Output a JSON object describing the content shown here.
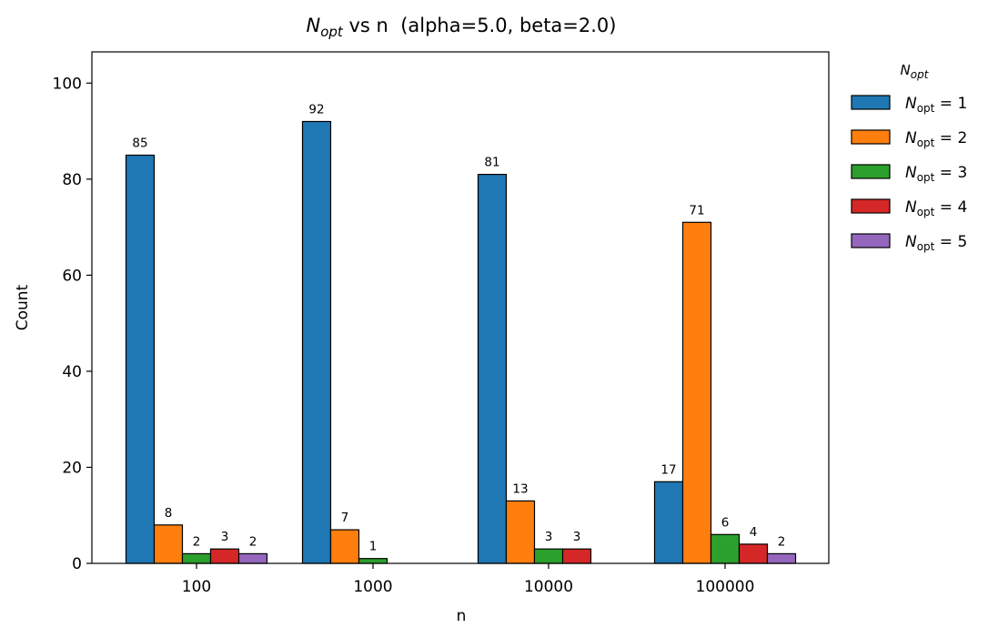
{
  "chart_data": {
    "type": "bar",
    "title": {
      "main": "N",
      "sub": "opt",
      "rest": " vs n  (alpha=5.0, beta=2.0)"
    },
    "xlabel": "n",
    "ylabel": "Count",
    "categories": [
      "100",
      "1000",
      "10000",
      "100000"
    ],
    "ylim": [
      0,
      106.5
    ],
    "yticks": [
      0,
      20,
      40,
      60,
      80,
      100
    ],
    "grid": false,
    "legend": {
      "placement": "outside-right",
      "title": {
        "main": "N",
        "sub": "opt"
      }
    },
    "series": [
      {
        "name": "N_opt = 1",
        "label": {
          "main": "N",
          "sub": "opt",
          "eq": " = 1"
        },
        "color": "#1f77b4",
        "values": [
          85,
          92,
          81,
          17
        ]
      },
      {
        "name": "N_opt = 2",
        "label": {
          "main": "N",
          "sub": "opt",
          "eq": " = 2"
        },
        "color": "#ff7f0e",
        "values": [
          8,
          7,
          13,
          71
        ]
      },
      {
        "name": "N_opt = 3",
        "label": {
          "main": "N",
          "sub": "opt",
          "eq": " = 3"
        },
        "color": "#2ca02c",
        "values": [
          2,
          1,
          3,
          6
        ]
      },
      {
        "name": "N_opt = 4",
        "label": {
          "main": "N",
          "sub": "opt",
          "eq": " = 4"
        },
        "color": "#d62728",
        "values": [
          3,
          0,
          3,
          4
        ]
      },
      {
        "name": "N_opt = 5",
        "label": {
          "main": "N",
          "sub": "opt",
          "eq": " = 5"
        },
        "color": "#9467bd",
        "values": [
          2,
          0,
          0,
          2
        ]
      }
    ]
  }
}
